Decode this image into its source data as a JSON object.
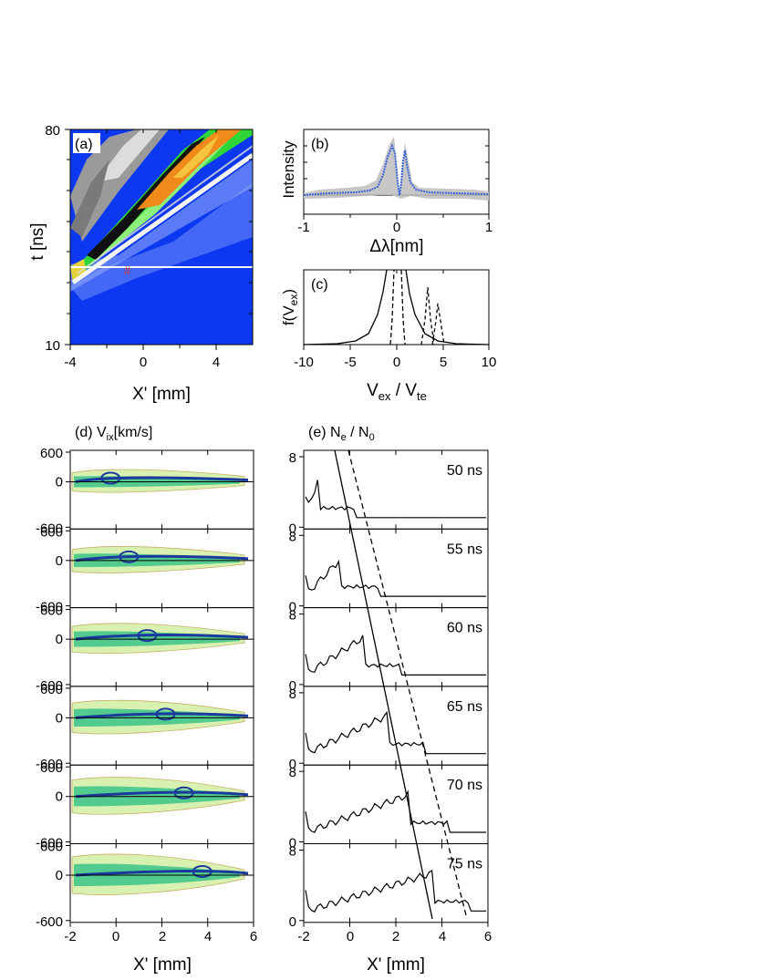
{
  "panel_a": {
    "label": "(a)",
    "ylabel": "t [ns]",
    "xlabel": "X' [mm]",
    "y_ticks": [
      "80",
      "10"
    ],
    "x_ticks": [
      "-4",
      "0",
      "4"
    ],
    "marker": "#",
    "colors": {
      "bg": "#0b38f0",
      "green": "#2fd63a",
      "orange": "#f08a1a",
      "white": "#f4f4f4",
      "black": "#111111"
    }
  },
  "panel_b": {
    "label": "(b)",
    "ylabel": "Intensity",
    "xlabel": "Δλ[nm]",
    "x_ticks": [
      "-1",
      "0",
      "1"
    ],
    "colors": {
      "band": "#bdbdbd",
      "data": "#3a63d8"
    }
  },
  "panel_c": {
    "label": "(c)",
    "ylabel_main": "f(V",
    "ylabel_sub": "ex",
    "ylabel_close": ")",
    "xlabel_main": "V",
    "xlabel_sub1": "ex",
    "xlabel_mid": " / V",
    "xlabel_sub2": "te",
    "x_ticks": [
      "-10",
      "-5",
      "0",
      "5",
      "10"
    ]
  },
  "panel_d": {
    "label_main": "(d) V",
    "label_sub": "ix",
    "label_unit": "[km/s]",
    "y_ticks": [
      "600",
      "0",
      "-600"
    ],
    "x_ticks": [
      "-2",
      "0",
      "2",
      "4",
      "6"
    ],
    "xlabel": "X' [mm]"
  },
  "panel_e": {
    "label_main": "(e) N",
    "label_sub1": "e",
    "label_mid": " / N",
    "label_sub2": "0",
    "y_ticks": [
      "8",
      "0"
    ],
    "x_ticks": [
      "-2",
      "0",
      "2",
      "4",
      "6"
    ],
    "xlabel": "X' [mm]",
    "times": [
      "50 ns",
      "55 ns",
      "60 ns",
      "65 ns",
      "70 ns",
      "75 ns"
    ]
  }
}
